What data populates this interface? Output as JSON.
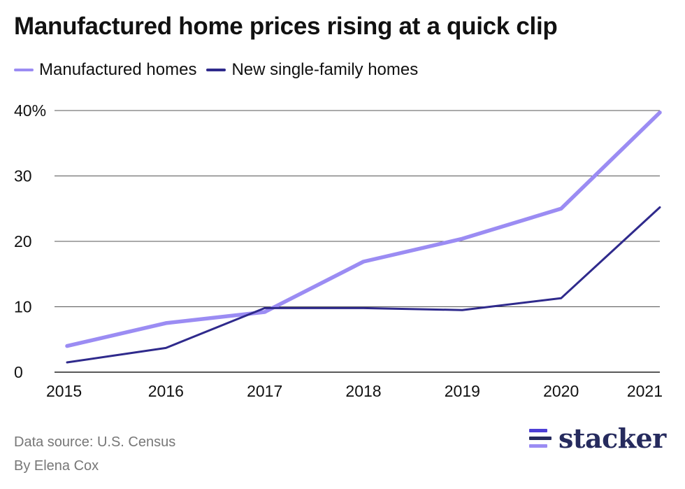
{
  "header": {
    "title": "Manufactured home prices rising at a quick clip"
  },
  "legend": {
    "items": [
      {
        "label": "Manufactured homes",
        "color": "#9b8cf3"
      },
      {
        "label": "New single-family homes",
        "color": "#2f2a8c"
      }
    ]
  },
  "chart_data": {
    "type": "line",
    "x": [
      "2015",
      "2016",
      "2017",
      "2018",
      "2019",
      "2020",
      "2021"
    ],
    "series": [
      {
        "name": "Manufactured homes",
        "color": "#9b8cf3",
        "values": [
          4.0,
          7.5,
          9.2,
          16.9,
          20.4,
          25.0,
          39.7
        ]
      },
      {
        "name": "New single-family homes",
        "color": "#2f2a8c",
        "values": [
          1.5,
          3.7,
          9.8,
          9.8,
          9.5,
          11.3,
          25.2
        ]
      }
    ],
    "y_ticks": [
      {
        "value": 0,
        "label": "0"
      },
      {
        "value": 10,
        "label": "10"
      },
      {
        "value": 20,
        "label": "20"
      },
      {
        "value": 30,
        "label": "30"
      },
      {
        "value": 40,
        "label": "40%"
      }
    ],
    "ylim": [
      0,
      40
    ],
    "grid": true,
    "legend_position": "top-left"
  },
  "footer": {
    "source": "Data source: U.S. Census",
    "byline": "By Elena Cox",
    "logo_text": "stacker"
  }
}
